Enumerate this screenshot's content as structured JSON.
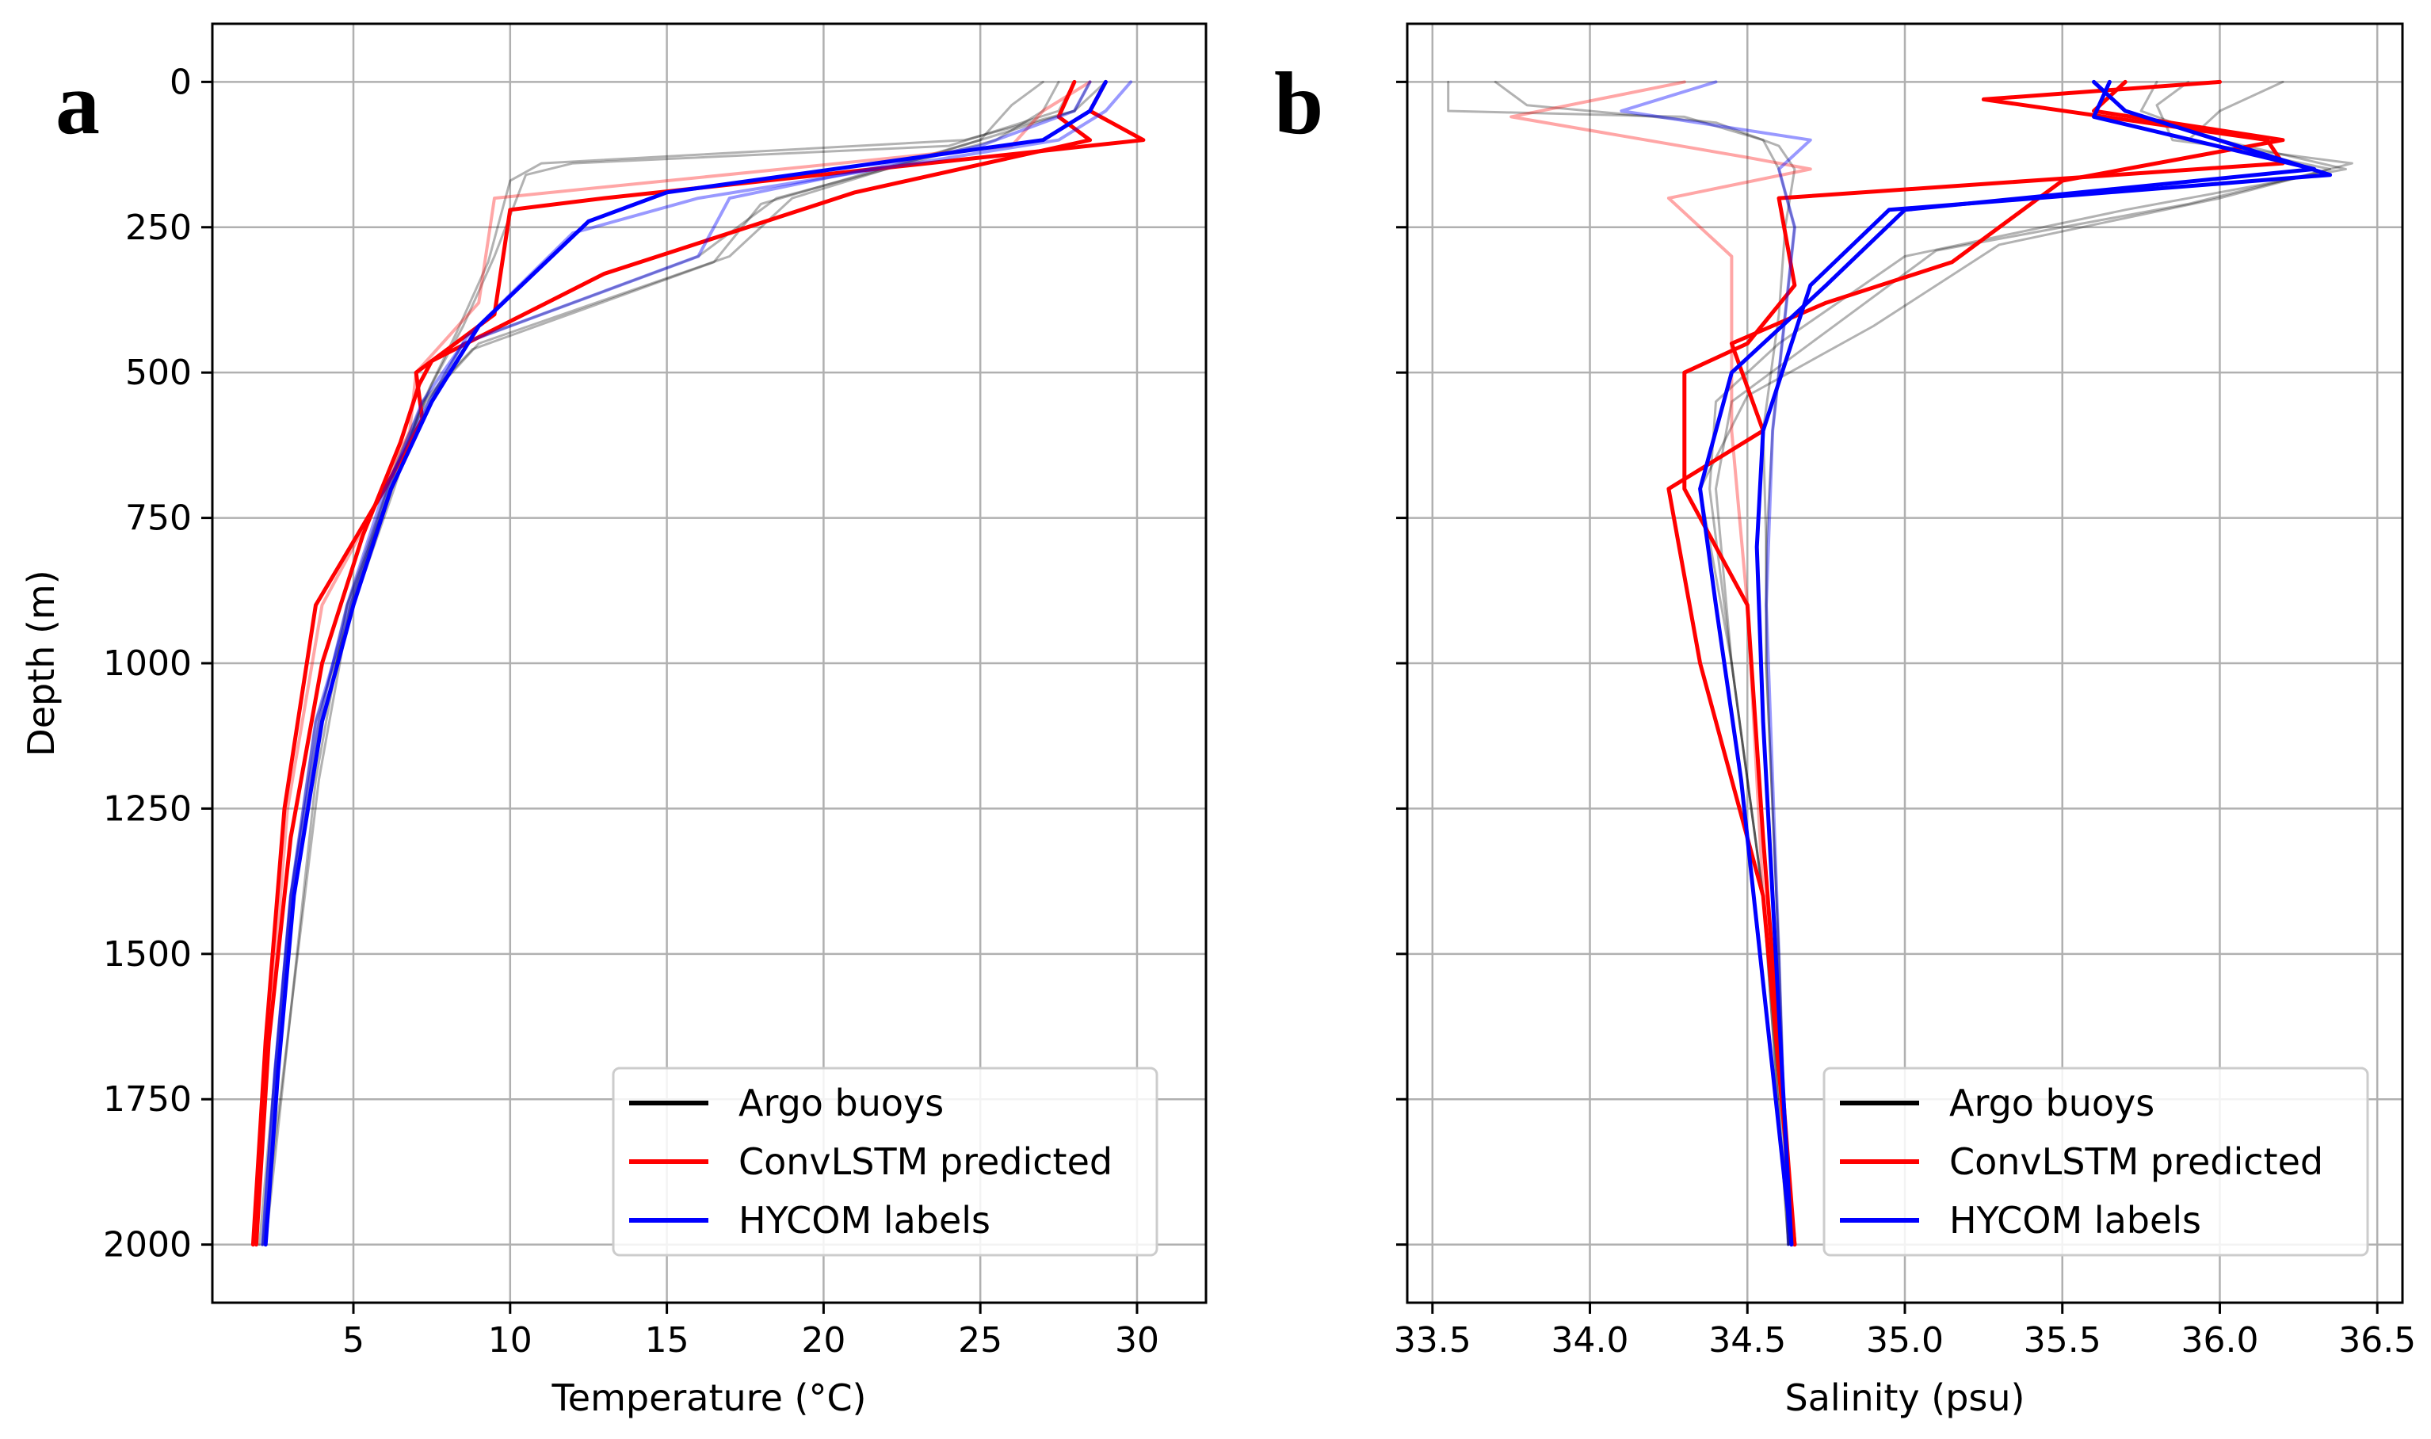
{
  "chart_data": [
    {
      "type": "line",
      "panel_label": "a",
      "xlabel": "Temperature (°C)",
      "ylabel": "Depth (m)",
      "xlim": [
        0.5,
        32.2
      ],
      "ylim": [
        2100,
        -100
      ],
      "y_inverted": true,
      "grid": true,
      "x_ticks": [
        5,
        10,
        15,
        20,
        25,
        30
      ],
      "x_tick_labels": [
        "5",
        "10",
        "15",
        "20",
        "25",
        "30"
      ],
      "y_ticks": [
        0,
        250,
        500,
        750,
        1000,
        1250,
        1500,
        1750,
        2000
      ],
      "y_tick_labels": [
        "0",
        "250",
        "500",
        "750",
        "1000",
        "1250",
        "1500",
        "1750",
        "2000"
      ],
      "legend": {
        "position": "lower-right",
        "entries": [
          {
            "label": "Argo buoys",
            "color": "#000000"
          },
          {
            "label": "ConvLSTM predicted",
            "color": "#ff0000"
          },
          {
            "label": "HYCOM labels",
            "color": "#0000ff"
          }
        ]
      },
      "series": [
        {
          "name": "Argo buoys",
          "color": "#000000",
          "alpha": 0.3,
          "width": 3,
          "x": [
            27.5,
            27.0,
            25.5,
            18.5,
            16.0,
            8.5,
            7.4,
            6.2,
            4.8,
            3.9,
            3.0,
            2.5,
            2.1
          ],
          "depth": [
            0,
            50,
            100,
            200,
            300,
            450,
            550,
            700,
            900,
            1100,
            1400,
            1700,
            2000
          ]
        },
        {
          "name": "Argo buoys",
          "color": "#000000",
          "alpha": 0.3,
          "width": 3,
          "x": [
            28.5,
            28.0,
            25.0,
            19.0,
            17.0,
            9.0,
            7.3,
            6.1,
            4.9,
            4.0,
            3.1,
            2.6,
            2.2
          ],
          "depth": [
            0,
            50,
            100,
            200,
            300,
            450,
            550,
            700,
            900,
            1100,
            1400,
            1700,
            2000
          ]
        },
        {
          "name": "Argo buoys",
          "color": "#000000",
          "alpha": 0.3,
          "width": 3,
          "x": [
            27.0,
            26.0,
            25.0,
            18.0,
            16.5,
            8.8,
            7.2,
            6.3,
            5.0,
            3.8,
            3.0,
            2.5,
            2.0
          ],
          "depth": [
            0,
            40,
            100,
            210,
            310,
            460,
            550,
            700,
            900,
            1100,
            1400,
            1700,
            2000
          ]
        },
        {
          "name": "Argo buoys",
          "color": "#000000",
          "alpha": 0.3,
          "width": 3,
          "x": [
            28.0,
            27.5,
            24.0,
            12.0,
            10.5,
            9.5,
            8.5,
            7.5,
            6.5,
            4.9,
            3.9,
            3.0,
            2.1
          ],
          "depth": [
            0,
            50,
            110,
            140,
            160,
            300,
            420,
            520,
            650,
            900,
            1200,
            1600,
            2000
          ]
        },
        {
          "name": "Argo buoys",
          "color": "#000000",
          "alpha": 0.3,
          "width": 3,
          "x": [
            29.0,
            28.0,
            24.5,
            11.0,
            10.0,
            9.3,
            8.3,
            7.4,
            6.4,
            4.8,
            3.8,
            3.0,
            2.2
          ],
          "depth": [
            0,
            50,
            100,
            140,
            170,
            310,
            430,
            530,
            650,
            900,
            1200,
            1600,
            2000
          ]
        },
        {
          "name": "ConvLSTM predicted",
          "color": "#ff0000",
          "alpha": 1.0,
          "width": 5,
          "x": [
            29.0,
            28.5,
            30.2,
            13.0,
            10.0,
            9.5,
            7.0,
            7.2,
            6.0,
            3.8,
            2.8,
            2.2,
            1.8
          ],
          "depth": [
            0,
            50,
            100,
            200,
            220,
            400,
            500,
            580,
            700,
            900,
            1250,
            1650,
            2000
          ]
        },
        {
          "name": "ConvLSTM predicted",
          "color": "#ff0000",
          "alpha": 1.0,
          "width": 5,
          "x": [
            28.0,
            27.5,
            28.5,
            21.0,
            13.0,
            7.5,
            7.1,
            6.5,
            5.3,
            4.0,
            3.0,
            2.3,
            1.9
          ],
          "depth": [
            0,
            60,
            100,
            190,
            330,
            480,
            520,
            620,
            780,
            1000,
            1300,
            1650,
            2000
          ]
        },
        {
          "name": "ConvLSTM predicted",
          "color": "#ff0000",
          "alpha": 0.35,
          "width": 4,
          "x": [
            28.5,
            27.0,
            26.0,
            9.5,
            9.0,
            7.0,
            6.8,
            5.8,
            4.0,
            2.9,
            2.3,
            1.9
          ],
          "depth": [
            0,
            50,
            110,
            200,
            380,
            500,
            600,
            720,
            900,
            1250,
            1650,
            2000
          ]
        },
        {
          "name": "HYCOM labels",
          "color": "#0000ff",
          "alpha": 1.0,
          "width": 5,
          "x": [
            29.0,
            28.5,
            27.0,
            15.0,
            12.5,
            9.0,
            7.5,
            6.2,
            5.0,
            4.0,
            3.1,
            2.6,
            2.2
          ],
          "depth": [
            0,
            50,
            100,
            190,
            240,
            420,
            550,
            700,
            900,
            1100,
            1400,
            1700,
            2000
          ]
        },
        {
          "name": "HYCOM labels",
          "color": "#0000ff",
          "alpha": 0.4,
          "width": 4,
          "x": [
            29.8,
            29.0,
            27.5,
            16.0,
            12.0,
            8.6,
            7.3,
            6.0,
            4.8,
            3.9,
            3.0,
            2.5,
            2.1
          ],
          "depth": [
            0,
            50,
            100,
            200,
            260,
            440,
            560,
            700,
            900,
            1100,
            1400,
            1700,
            2000
          ]
        },
        {
          "name": "HYCOM labels",
          "color": "#0000ff",
          "alpha": 0.4,
          "width": 4,
          "x": [
            28.5,
            28.0,
            25.0,
            17.0,
            16.0,
            8.5,
            7.2,
            6.1,
            4.9,
            3.8,
            3.0,
            2.5,
            2.1
          ],
          "depth": [
            0,
            50,
            110,
            200,
            300,
            450,
            550,
            700,
            900,
            1100,
            1400,
            1700,
            2000
          ]
        }
      ]
    },
    {
      "type": "line",
      "panel_label": "b",
      "xlabel": "Salinity (psu)",
      "ylabel": "",
      "xlim": [
        33.42,
        36.58
      ],
      "ylim": [
        2100,
        -100
      ],
      "y_inverted": true,
      "grid": true,
      "x_ticks": [
        33.5,
        34.0,
        34.5,
        35.0,
        35.5,
        36.0,
        36.5
      ],
      "x_tick_labels": [
        "33.5",
        "34.0",
        "34.5",
        "35.0",
        "35.5",
        "36.0",
        "36.5"
      ],
      "y_ticks": [
        0,
        250,
        500,
        750,
        1000,
        1250,
        1500,
        1750,
        2000
      ],
      "y_tick_labels": [
        "",
        "",
        "",
        "",
        "",
        "",
        "",
        "",
        ""
      ],
      "legend": {
        "position": "lower-right",
        "entries": [
          {
            "label": "Argo buoys",
            "color": "#000000"
          },
          {
            "label": "ConvLSTM predicted",
            "color": "#ff0000"
          },
          {
            "label": "HYCOM labels",
            "color": "#0000ff"
          }
        ]
      },
      "series": [
        {
          "name": "Argo buoys",
          "color": "#000000",
          "alpha": 0.3,
          "width": 3,
          "x": [
            33.55,
            33.55,
            34.3,
            34.55,
            34.6,
            34.65,
            34.62,
            34.58,
            34.56,
            34.56,
            34.6,
            34.63
          ],
          "depth": [
            0,
            50,
            60,
            100,
            150,
            250,
            400,
            600,
            800,
            1000,
            1500,
            2000
          ]
        },
        {
          "name": "Argo buoys",
          "color": "#000000",
          "alpha": 0.3,
          "width": 3,
          "x": [
            33.7,
            33.8,
            34.4,
            34.6,
            34.65,
            34.62,
            34.6,
            34.55,
            34.56,
            34.56,
            34.6,
            34.63
          ],
          "depth": [
            0,
            40,
            70,
            110,
            150,
            250,
            400,
            600,
            800,
            1000,
            1500,
            2000
          ]
        },
        {
          "name": "Argo buoys",
          "color": "#000000",
          "alpha": 0.3,
          "width": 3,
          "x": [
            35.8,
            35.75,
            36.0,
            36.4,
            35.7,
            35.0,
            34.6,
            34.4,
            34.38,
            34.45,
            34.55,
            34.63
          ],
          "depth": [
            0,
            50,
            100,
            150,
            220,
            300,
            450,
            550,
            700,
            1000,
            1400,
            2000
          ]
        },
        {
          "name": "Argo buoys",
          "color": "#000000",
          "alpha": 0.3,
          "width": 3,
          "x": [
            36.2,
            36.0,
            35.9,
            36.35,
            35.9,
            35.1,
            34.75,
            34.45,
            34.4,
            34.45,
            34.55,
            34.63
          ],
          "depth": [
            0,
            50,
            100,
            150,
            210,
            290,
            430,
            550,
            700,
            1000,
            1400,
            2000
          ]
        },
        {
          "name": "Argo buoys",
          "color": "#000000",
          "alpha": 0.3,
          "width": 3,
          "x": [
            35.9,
            35.8,
            35.85,
            36.42,
            36.0,
            35.3,
            34.9,
            34.5,
            34.35,
            34.45,
            34.55,
            34.64
          ],
          "depth": [
            0,
            40,
            100,
            140,
            200,
            280,
            420,
            540,
            700,
            1000,
            1400,
            2000
          ]
        },
        {
          "name": "ConvLSTM predicted",
          "color": "#ff0000",
          "alpha": 1.0,
          "width": 5,
          "x": [
            36.0,
            35.25,
            36.15,
            36.2,
            34.6,
            34.65,
            34.5,
            34.3,
            34.3,
            34.5,
            34.55,
            34.65
          ],
          "depth": [
            0,
            30,
            100,
            140,
            200,
            350,
            450,
            500,
            700,
            900,
            1300,
            2000
          ]
        },
        {
          "name": "ConvLSTM predicted",
          "color": "#ff0000",
          "alpha": 1.0,
          "width": 5,
          "x": [
            35.7,
            35.6,
            36.2,
            35.5,
            35.15,
            34.75,
            34.45,
            34.55,
            34.25,
            34.35,
            34.55,
            34.65
          ],
          "depth": [
            0,
            50,
            100,
            170,
            310,
            380,
            450,
            600,
            700,
            1000,
            1400,
            2000
          ]
        },
        {
          "name": "ConvLSTM predicted",
          "color": "#ff0000",
          "alpha": 0.35,
          "width": 4,
          "x": [
            34.3,
            33.75,
            34.5,
            34.7,
            34.25,
            34.45,
            34.45,
            34.45,
            34.5,
            34.55,
            34.65
          ],
          "depth": [
            0,
            60,
            130,
            150,
            200,
            300,
            450,
            600,
            900,
            1400,
            2000
          ]
        },
        {
          "name": "HYCOM labels",
          "color": "#0000ff",
          "alpha": 1.0,
          "width": 5,
          "x": [
            35.65,
            35.6,
            36.3,
            35.0,
            34.75,
            34.45,
            34.35,
            34.4,
            34.48,
            34.56,
            34.64
          ],
          "depth": [
            0,
            60,
            150,
            220,
            350,
            500,
            700,
            900,
            1200,
            1600,
            2000
          ]
        },
        {
          "name": "HYCOM labels",
          "color": "#0000ff",
          "alpha": 1.0,
          "width": 5,
          "x": [
            35.6,
            35.7,
            36.35,
            34.95,
            34.7,
            34.55,
            34.53,
            34.55,
            34.6,
            34.64
          ],
          "depth": [
            0,
            50,
            160,
            220,
            350,
            600,
            800,
            1100,
            1600,
            2000
          ]
        },
        {
          "name": "HYCOM labels",
          "color": "#0000ff",
          "alpha": 0.4,
          "width": 4,
          "x": [
            34.4,
            34.1,
            34.7,
            34.6,
            34.65,
            34.62,
            34.58,
            34.56,
            34.6,
            34.63
          ],
          "depth": [
            0,
            50,
            100,
            150,
            250,
            400,
            600,
            900,
            1500,
            2000
          ]
        }
      ]
    }
  ]
}
